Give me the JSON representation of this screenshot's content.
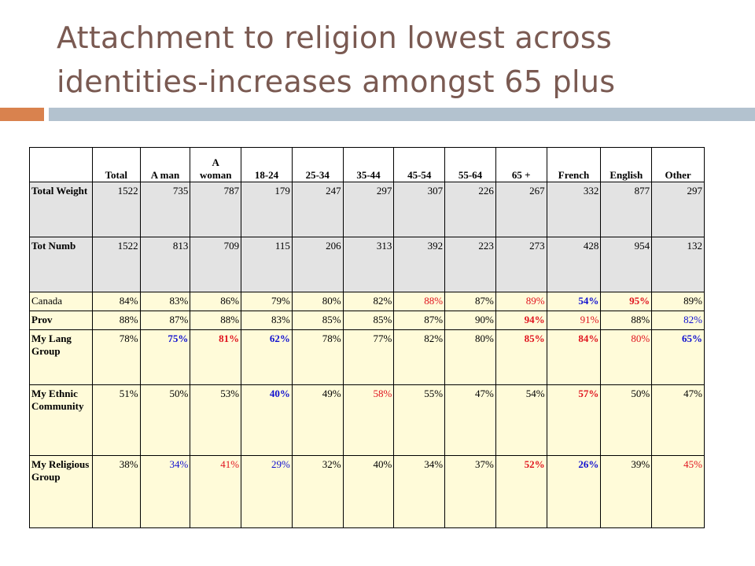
{
  "slide": {
    "title_line1": "Attachment to religion lowest across",
    "title_line2": "identities-increases amongst 65 plus"
  },
  "colors": {
    "black": "#000000",
    "red": "#e0141e",
    "blue": "#1010d0"
  },
  "table": {
    "headers": [
      "Total",
      "A man",
      "A woman",
      "18-24",
      "25-34",
      "35-44",
      "45-54",
      "55-64",
      "65 +",
      "French",
      "English",
      "Other"
    ],
    "rows": [
      {
        "label": "Total Weight",
        "values": [
          "1522",
          "735",
          "787",
          "179",
          "247",
          "297",
          "307",
          "226",
          "267",
          "332",
          "877",
          "297"
        ],
        "styles": [
          "n",
          "n",
          "n",
          "n",
          "n",
          "n",
          "n",
          "n",
          "n",
          "n",
          "n",
          "n"
        ]
      },
      {
        "label": "Tot Numb",
        "values": [
          "1522",
          "813",
          "709",
          "115",
          "206",
          "313",
          "392",
          "223",
          "273",
          "428",
          "954",
          "132"
        ],
        "styles": [
          "n",
          "n",
          "n",
          "n",
          "n",
          "n",
          "n",
          "n",
          "n",
          "n",
          "n",
          "n"
        ]
      },
      {
        "label": "Canada",
        "values": [
          "84%",
          "83%",
          "86%",
          "79%",
          "80%",
          "82%",
          "88%",
          "87%",
          "89%",
          "54%",
          "95%",
          "89%"
        ],
        "styles": [
          "n",
          "n",
          "n",
          "n",
          "n",
          "n",
          "r",
          "n",
          "r",
          "bb",
          "rb",
          "n"
        ]
      },
      {
        "label": "Prov",
        "values": [
          "88%",
          "87%",
          "88%",
          "83%",
          "85%",
          "85%",
          "87%",
          "90%",
          "94%",
          "91%",
          "88%",
          "82%"
        ],
        "styles": [
          "n",
          "n",
          "n",
          "n",
          "n",
          "n",
          "n",
          "n",
          "rb",
          "r",
          "n",
          "b"
        ]
      },
      {
        "label": "My Lang Group",
        "values": [
          "78%",
          "75%",
          "81%",
          "62%",
          "78%",
          "77%",
          "82%",
          "80%",
          "85%",
          "84%",
          "80%",
          "65%"
        ],
        "styles": [
          "n",
          "bb",
          "rb",
          "bb",
          "n",
          "n",
          "n",
          "n",
          "rb",
          "rb",
          "r",
          "bb"
        ]
      },
      {
        "label": "My Ethnic Community",
        "values": [
          "51%",
          "50%",
          "53%",
          "40%",
          "49%",
          "58%",
          "55%",
          "47%",
          "54%",
          "57%",
          "50%",
          "47%"
        ],
        "styles": [
          "n",
          "n",
          "n",
          "bb",
          "n",
          "r",
          "n",
          "n",
          "n",
          "rb",
          "n",
          "n"
        ]
      },
      {
        "label": "My Religious Group",
        "values": [
          "38%",
          "34%",
          "41%",
          "29%",
          "32%",
          "40%",
          "34%",
          "37%",
          "52%",
          "26%",
          "39%",
          "45%"
        ],
        "styles": [
          "n",
          "b",
          "r",
          "b",
          "n",
          "n",
          "n",
          "n",
          "rb",
          "bb",
          "n",
          "r"
        ]
      }
    ]
  }
}
